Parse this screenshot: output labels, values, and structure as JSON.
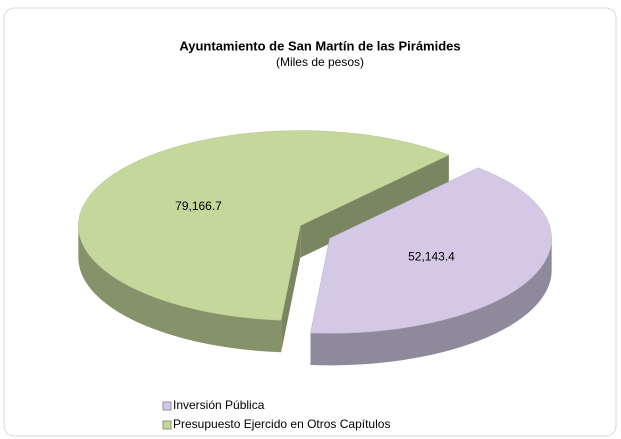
{
  "chart_data": {
    "type": "pie",
    "title": "Ayuntamiento de San Martín de las Pirámides",
    "subtitle": "(Miles de pesos)",
    "categories": [
      "Inversión Pública",
      "Presupuesto Ejercido en Otros Capítulos"
    ],
    "values": [
      52143.4,
      79166.7
    ],
    "value_labels": [
      "52,143.4",
      "79,166.7"
    ],
    "colors": [
      "#d3c9e6",
      "#c5d89c"
    ],
    "legend": "bottom-left"
  }
}
